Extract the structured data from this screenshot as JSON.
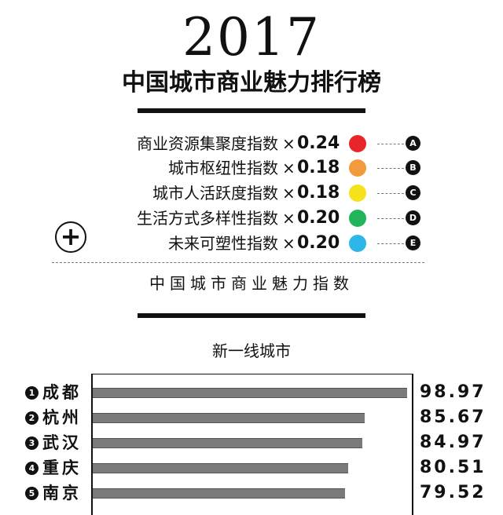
{
  "header": {
    "year": "2017",
    "title": "中国城市商业魅力排行榜"
  },
  "formula": {
    "factors": [
      {
        "label": "商业资源集聚度指数",
        "times": "×",
        "weight": "0.24",
        "color": "#e8262a",
        "letter": "A"
      },
      {
        "label": "城市枢纽性指数",
        "times": "×",
        "weight": "0.18",
        "color": "#f39a3c",
        "letter": "B"
      },
      {
        "label": "城市人活跃度指数",
        "times": "×",
        "weight": "0.18",
        "color": "#f6e21b",
        "letter": "C"
      },
      {
        "label": "生活方式多样性指数",
        "times": "×",
        "weight": "0.20",
        "color": "#21b45a",
        "letter": "D"
      },
      {
        "label": "未来可塑性指数",
        "times": "×",
        "weight": "0.20",
        "color": "#2cb7e8",
        "letter": "E"
      }
    ],
    "plus": "+",
    "result": "中国城市商业魅力指数"
  },
  "chart_data": {
    "type": "bar",
    "orientation": "horizontal",
    "title": "新一线城市",
    "xlim": [
      0,
      100
    ],
    "grid": false,
    "bar_color": "#7a7a7a",
    "categories": [
      {
        "rank": "1",
        "name": "成都",
        "value": 98.97,
        "label": "98.97"
      },
      {
        "rank": "2",
        "name": "杭州",
        "value": 85.67,
        "label": "85.67"
      },
      {
        "rank": "3",
        "name": "武汉",
        "value": 84.97,
        "label": "84.97"
      },
      {
        "rank": "4",
        "name": "重庆",
        "value": 80.51,
        "label": "80.51"
      },
      {
        "rank": "5",
        "name": "南京",
        "value": 79.52,
        "label": "79.52"
      }
    ]
  }
}
